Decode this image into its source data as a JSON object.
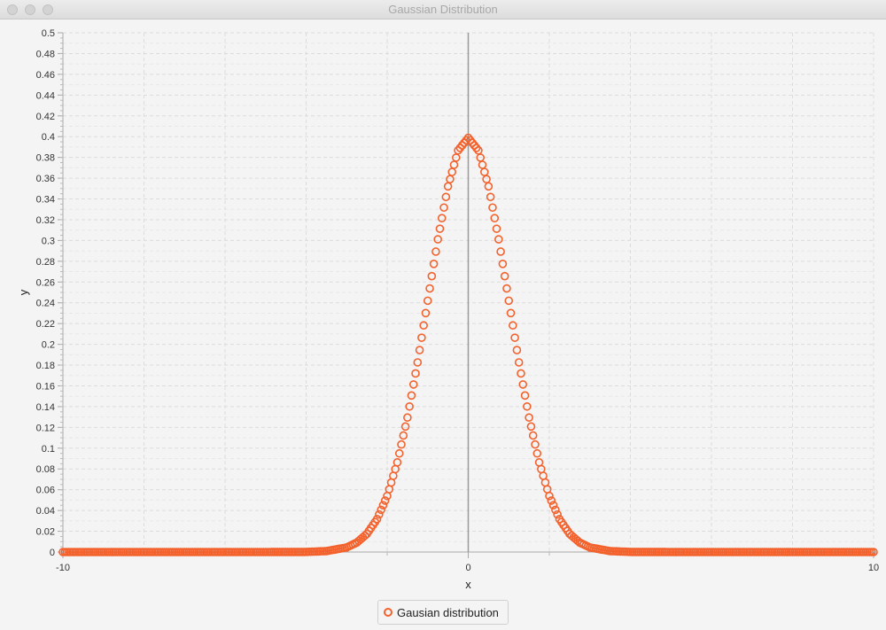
{
  "window": {
    "title": "Gaussian Distribution"
  },
  "legend": {
    "label": "Gausian distribution"
  },
  "chart_data": {
    "type": "scatter",
    "title": "",
    "xlabel": "x",
    "ylabel": "y",
    "xlim": [
      -10,
      10
    ],
    "ylim": [
      0,
      0.5
    ],
    "x_tick_labels": [
      "-10",
      "0",
      "10"
    ],
    "y_tick_labels": [
      "0",
      "0.02",
      "0.04",
      "0.06",
      "0.08",
      "0.1",
      "0.12",
      "0.14",
      "0.16",
      "0.18",
      "0.2",
      "0.22",
      "0.24",
      "0.26",
      "0.28",
      "0.3",
      "0.32",
      "0.34",
      "0.36",
      "0.38",
      "0.4",
      "0.42",
      "0.44",
      "0.46",
      "0.48",
      "0.5"
    ],
    "grid": true,
    "legend_position": "bottom",
    "series": [
      {
        "name": "Gausian distribution",
        "color": "#f3622d",
        "x": [
          -10,
          -9,
          -8,
          -7,
          -6,
          -5,
          -4,
          -3.5,
          -3,
          -2.75,
          -2.5,
          -2.25,
          -2,
          -1.75,
          -1.5,
          -1.25,
          -1,
          -0.75,
          -0.5,
          -0.25,
          0,
          0.25,
          0.5,
          0.75,
          1,
          1.25,
          1.5,
          1.75,
          2,
          2.25,
          2.5,
          2.75,
          3,
          3.5,
          4,
          5,
          6,
          7,
          8,
          9,
          10
        ],
        "y": [
          0,
          0,
          0,
          0,
          0,
          0,
          0.0001,
          0.0009,
          0.0044,
          0.0091,
          0.0175,
          0.0317,
          0.054,
          0.0863,
          0.1295,
          0.1826,
          0.242,
          0.3011,
          0.3521,
          0.3867,
          0.3989,
          0.3867,
          0.3521,
          0.3011,
          0.242,
          0.1826,
          0.1295,
          0.0863,
          0.054,
          0.0317,
          0.0175,
          0.0091,
          0.0044,
          0.0009,
          0.0001,
          0,
          0,
          0,
          0,
          0,
          0
        ]
      }
    ]
  }
}
